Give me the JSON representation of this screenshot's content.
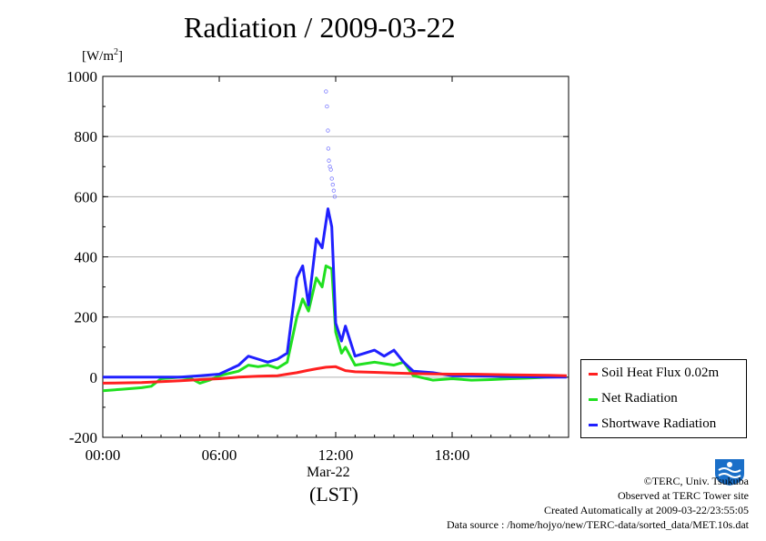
{
  "title": "Radiation / 2009-03-22",
  "y_unit": "[W/m2]",
  "x_date_label": "Mar-22",
  "x_axis_label": "(LST)",
  "credits": {
    "copyright": "©TERC, Univ. Tsukuba",
    "site": "Observed at TERC Tower site",
    "created": "Created Automatically at 2009-03-22/23:55:05",
    "source": "Data source : /home/hojyo/new/TERC-data/sorted_data/MET.10s.dat"
  },
  "colors": {
    "soil": "#ff2020",
    "net": "#20e020",
    "shortwave": "#2020ff",
    "shortwave_points": "#8080ff",
    "grid": "#b0b0b0"
  },
  "chart_data": {
    "type": "line",
    "title": "Radiation / 2009-03-22",
    "xlabel": "(LST)",
    "ylabel": "[W/m2]",
    "xlim": [
      0,
      24
    ],
    "ylim": [
      -200,
      1000
    ],
    "x_ticks": [
      0,
      6,
      12,
      18
    ],
    "x_tick_labels": [
      "00:00",
      "06:00",
      "12:00",
      "18:00"
    ],
    "y_ticks": [
      -200,
      0,
      200,
      400,
      600,
      800,
      1000
    ],
    "y_tick_labels": [
      "-200",
      "0",
      "200",
      "400",
      "600",
      "800",
      "1000"
    ],
    "grid": true,
    "legend_position": "right-bottom-outside",
    "series": [
      {
        "name": "Soil Heat Flux 0.02m",
        "color": "#ff2020",
        "points": [
          [
            0,
            -20
          ],
          [
            2,
            -18
          ],
          [
            4,
            -12
          ],
          [
            5,
            -8
          ],
          [
            6,
            -5
          ],
          [
            7,
            0
          ],
          [
            8,
            3
          ],
          [
            9,
            5
          ],
          [
            9.5,
            10
          ],
          [
            10,
            15
          ],
          [
            10.5,
            22
          ],
          [
            11,
            28
          ],
          [
            11.5,
            33
          ],
          [
            12,
            35
          ],
          [
            12.5,
            22
          ],
          [
            13,
            18
          ],
          [
            14,
            16
          ],
          [
            15,
            14
          ],
          [
            16,
            12
          ],
          [
            17,
            11
          ],
          [
            18,
            10
          ],
          [
            19,
            10
          ],
          [
            20,
            9
          ],
          [
            21,
            8
          ],
          [
            22,
            7
          ],
          [
            23,
            6
          ],
          [
            23.9,
            5
          ]
        ]
      },
      {
        "name": "Net Radiation",
        "color": "#20e020",
        "points": [
          [
            0,
            -45
          ],
          [
            1,
            -40
          ],
          [
            2,
            -35
          ],
          [
            2.5,
            -30
          ],
          [
            3,
            -5
          ],
          [
            4,
            0
          ],
          [
            4.5,
            -3
          ],
          [
            5,
            -20
          ],
          [
            5.5,
            -10
          ],
          [
            6,
            5
          ],
          [
            7,
            20
          ],
          [
            7.5,
            40
          ],
          [
            8,
            35
          ],
          [
            8.5,
            40
          ],
          [
            9,
            30
          ],
          [
            9.5,
            50
          ],
          [
            10,
            200
          ],
          [
            10.3,
            260
          ],
          [
            10.6,
            220
          ],
          [
            11,
            330
          ],
          [
            11.3,
            300
          ],
          [
            11.5,
            370
          ],
          [
            11.8,
            360
          ],
          [
            12,
            150
          ],
          [
            12.3,
            80
          ],
          [
            12.5,
            100
          ],
          [
            13,
            40
          ],
          [
            14,
            50
          ],
          [
            15,
            40
          ],
          [
            15.5,
            50
          ],
          [
            16,
            5
          ],
          [
            17,
            -10
          ],
          [
            18,
            -5
          ],
          [
            19,
            -10
          ],
          [
            20,
            -8
          ],
          [
            21,
            -5
          ],
          [
            22,
            -3
          ],
          [
            23,
            0
          ],
          [
            23.9,
            2
          ]
        ]
      },
      {
        "name": "Shortwave Radiation",
        "color": "#2020ff",
        "points": [
          [
            0,
            0
          ],
          [
            2,
            0
          ],
          [
            3,
            0
          ],
          [
            4,
            0
          ],
          [
            5,
            5
          ],
          [
            6,
            10
          ],
          [
            7,
            40
          ],
          [
            7.5,
            70
          ],
          [
            8,
            60
          ],
          [
            8.5,
            50
          ],
          [
            9,
            60
          ],
          [
            9.5,
            80
          ],
          [
            10,
            330
          ],
          [
            10.3,
            370
          ],
          [
            10.6,
            240
          ],
          [
            11,
            460
          ],
          [
            11.3,
            430
          ],
          [
            11.6,
            560
          ],
          [
            11.8,
            500
          ],
          [
            12,
            180
          ],
          [
            12.3,
            120
          ],
          [
            12.5,
            170
          ],
          [
            13,
            70
          ],
          [
            13.5,
            80
          ],
          [
            14,
            90
          ],
          [
            14.5,
            70
          ],
          [
            15,
            90
          ],
          [
            15.5,
            50
          ],
          [
            16,
            20
          ],
          [
            17,
            15
          ],
          [
            18,
            5
          ],
          [
            19,
            5
          ],
          [
            20,
            3
          ],
          [
            21,
            2
          ],
          [
            22,
            1
          ],
          [
            23,
            0
          ],
          [
            23.9,
            0
          ]
        ]
      }
    ],
    "shortwave_peak_points": [
      [
        11.5,
        950
      ],
      [
        11.55,
        900
      ],
      [
        11.6,
        820
      ],
      [
        11.62,
        760
      ],
      [
        11.65,
        720
      ],
      [
        11.7,
        700
      ],
      [
        11.75,
        690
      ],
      [
        11.8,
        660
      ],
      [
        11.85,
        640
      ],
      [
        11.9,
        620
      ],
      [
        11.95,
        600
      ]
    ]
  }
}
